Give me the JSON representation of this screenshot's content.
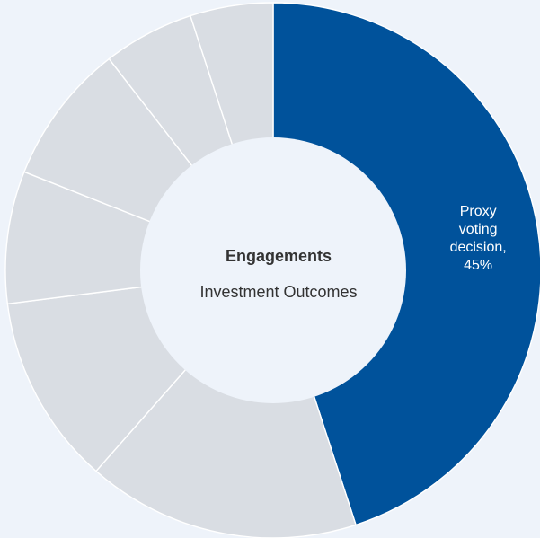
{
  "chart_data": {
    "type": "pie",
    "donut": true,
    "center_title": "Engagements",
    "center_subtitle": "Investment Outcomes",
    "segments": [
      {
        "label": "Proxy voting decision, 45%",
        "label_lines": [
          "Proxy",
          "voting",
          "decision,",
          "45%"
        ],
        "value": 45,
        "color": "#00529b"
      },
      {
        "label": "",
        "label_lines": [],
        "value": 16.5,
        "color": "#d9dde3"
      },
      {
        "label": "",
        "label_lines": [],
        "value": 11.5,
        "color": "#d9dde3"
      },
      {
        "label": "",
        "label_lines": [],
        "value": 8,
        "color": "#d9dde3"
      },
      {
        "label": "",
        "label_lines": [],
        "value": 8.5,
        "color": "#d9dde3"
      },
      {
        "label": "",
        "label_lines": [],
        "value": 5.5,
        "color": "#d9dde3"
      },
      {
        "label": "",
        "label_lines": [],
        "value": 5,
        "color": "#d9dde3"
      }
    ]
  }
}
